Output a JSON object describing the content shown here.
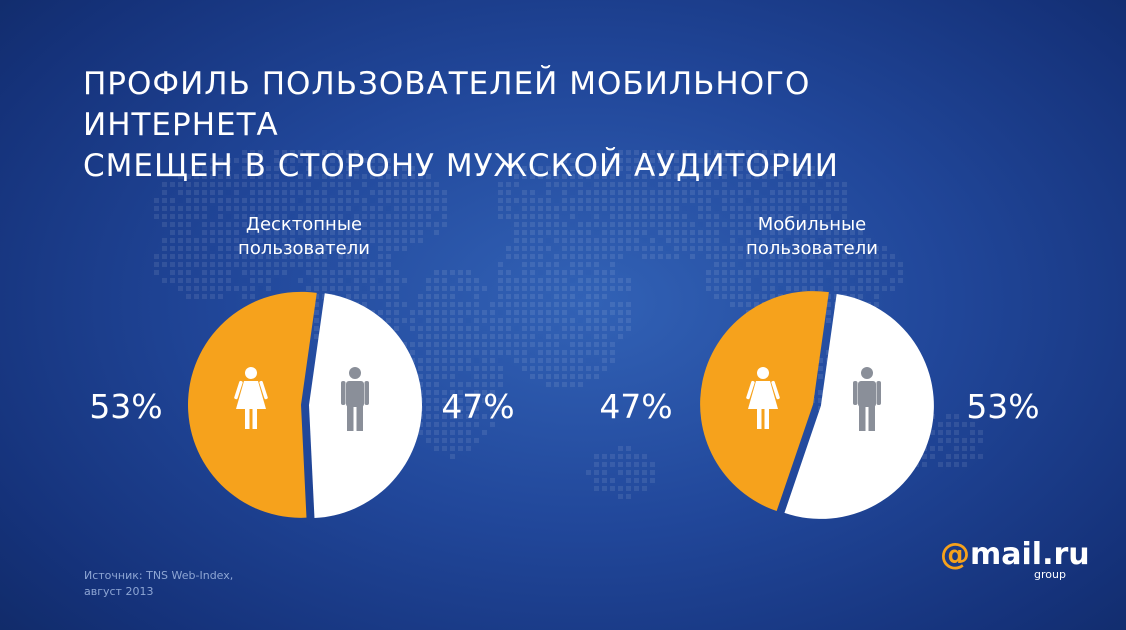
{
  "title": {
    "line1": "ПРОФИЛЬ ПОЛЬЗОВАТЕЛЕЙ МОБИЛЬНОГО ИНТЕРНЕТА",
    "line2": "СМЕЩЕН В СТОРОНУ МУЖСКОЙ АУДИТОРИИ"
  },
  "source": {
    "line1": "Источник: TNS Web-Index,",
    "line2": "август 2013"
  },
  "logo": {
    "text": "mail.ru",
    "subtext": "group"
  },
  "colors": {
    "female": "#f6a21c",
    "male": "#ffffff",
    "female_icon": "#ffffff",
    "male_icon": "#8a8f99",
    "background": "#21479a"
  },
  "icons": {
    "female": "female-person-icon",
    "male": "male-person-icon"
  },
  "chart_data": [
    {
      "type": "pie",
      "title_line1": "Десктопные",
      "title_line2": "пользователи",
      "slices": [
        {
          "key": "female",
          "value": 53,
          "label": "53%"
        },
        {
          "key": "male",
          "value": 47,
          "label": "47%"
        }
      ]
    },
    {
      "type": "pie",
      "title_line1": "Мобильные",
      "title_line2": "пользователи",
      "slices": [
        {
          "key": "female",
          "value": 47,
          "label": "47%"
        },
        {
          "key": "male",
          "value": 53,
          "label": "53%"
        }
      ]
    }
  ]
}
